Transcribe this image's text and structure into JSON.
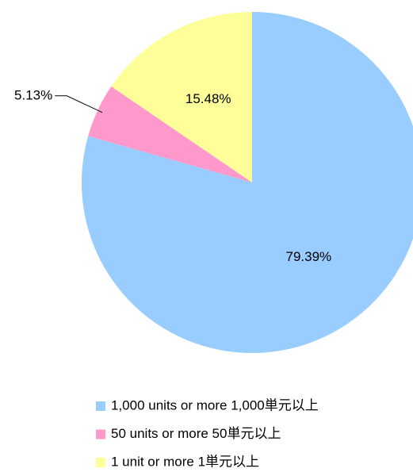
{
  "chart_data": {
    "type": "pie",
    "categories": [
      "1,000 units or more 1,000単元以上",
      "50 units or more 50単元以上",
      "1 unit or more 1単元以上"
    ],
    "values": [
      79.39,
      5.13,
      15.48
    ],
    "value_labels": [
      "79.39%",
      "5.13%",
      "15.48%"
    ],
    "colors": [
      "#99ccff",
      "#ff99cc",
      "#ffff99"
    ],
    "legend": "bottom"
  }
}
